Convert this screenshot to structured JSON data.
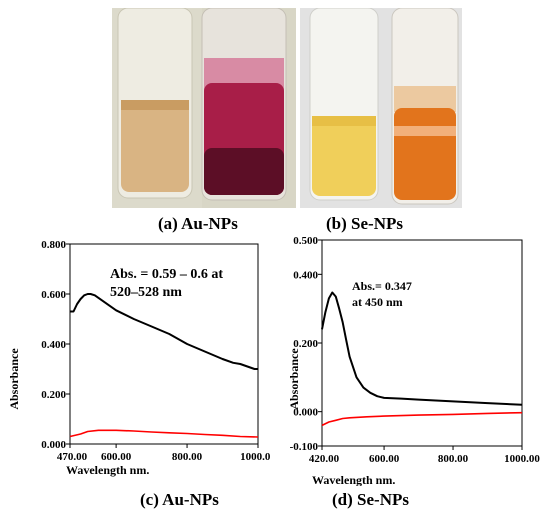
{
  "captions": {
    "a": "(a) Au-NPs",
    "b": "(b) Se-NPs",
    "c": "(c) Au-NPs",
    "d": "(d) Se-NPs"
  },
  "chart_data": [
    {
      "type": "line",
      "title": "",
      "xlabel": "Wavelength  nm.",
      "ylabel": "Absorbance",
      "xlim": [
        470,
        1000
      ],
      "ylim": [
        0,
        0.8
      ],
      "xticks": [
        "470.00",
        "600.00",
        "800.00",
        "1000.00"
      ],
      "yticks": [
        "0.000",
        "0.200",
        "0.400",
        "0.600",
        "0.800"
      ],
      "annotation": [
        "Abs. = 0.59 – 0.6 at",
        "520–528 nm"
      ],
      "colors": {
        "sample": "#000000",
        "reference": "#ff0000"
      },
      "series": [
        {
          "x": [
            470,
            480,
            490,
            500,
            510,
            520,
            528,
            540,
            560,
            580,
            600,
            650,
            700,
            750,
            800,
            850,
            900,
            930,
            950,
            970,
            990,
            1000
          ],
          "y": [
            0.53,
            0.53,
            0.56,
            0.58,
            0.595,
            0.6,
            0.6,
            0.595,
            0.575,
            0.555,
            0.535,
            0.5,
            0.47,
            0.44,
            0.4,
            0.37,
            0.34,
            0.325,
            0.32,
            0.31,
            0.3,
            0.3
          ]
        },
        {
          "x": [
            470,
            500,
            520,
            550,
            600,
            650,
            700,
            750,
            800,
            850,
            900,
            950,
            1000
          ],
          "y": [
            0.03,
            0.04,
            0.05,
            0.055,
            0.055,
            0.052,
            0.048,
            0.045,
            0.042,
            0.038,
            0.035,
            0.03,
            0.028
          ]
        }
      ]
    },
    {
      "type": "line",
      "title": "",
      "xlabel": "Wavelength  nm.",
      "ylabel": "Absorbance",
      "xlim": [
        420,
        1000
      ],
      "ylim": [
        -0.1,
        0.5
      ],
      "xticks": [
        "420.00",
        "600.00",
        "800.00",
        "1000.00"
      ],
      "yticks": [
        "-0.100",
        "0.000",
        "0.200",
        "0.400",
        "0.500"
      ],
      "annotation": [
        "Abs.= 0.347",
        "at 450 nm"
      ],
      "colors": {
        "sample": "#000000",
        "reference": "#ff0000"
      },
      "series": [
        {
          "x": [
            420,
            430,
            440,
            450,
            460,
            470,
            480,
            490,
            500,
            520,
            540,
            560,
            580,
            600,
            650,
            700,
            800,
            900,
            1000
          ],
          "y": [
            0.24,
            0.29,
            0.33,
            0.347,
            0.335,
            0.3,
            0.26,
            0.21,
            0.16,
            0.1,
            0.07,
            0.055,
            0.045,
            0.04,
            0.038,
            0.035,
            0.03,
            0.025,
            0.02
          ]
        },
        {
          "x": [
            420,
            440,
            460,
            480,
            500,
            550,
            600,
            700,
            800,
            900,
            1000
          ],
          "y": [
            -0.04,
            -0.03,
            -0.025,
            -0.02,
            -0.018,
            -0.015,
            -0.013,
            -0.01,
            -0.008,
            -0.005,
            -0.003
          ]
        }
      ]
    }
  ]
}
